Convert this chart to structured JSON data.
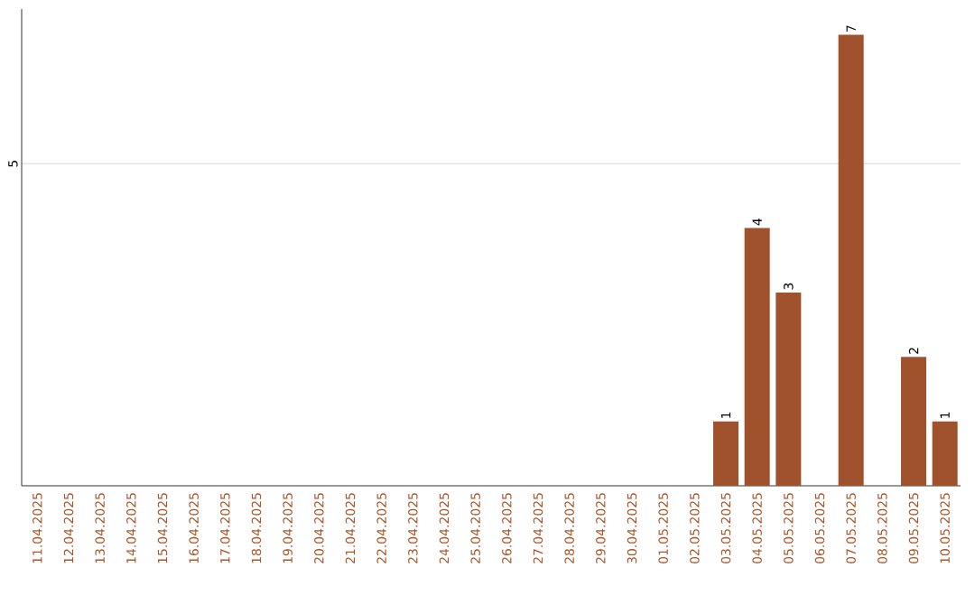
{
  "chart_data": {
    "type": "bar",
    "categories": [
      "11.04.2025",
      "12.04.2025",
      "13.04.2025",
      "14.04.2025",
      "15.04.2025",
      "16.04.2025",
      "17.04.2025",
      "18.04.2025",
      "19.04.2025",
      "20.04.2025",
      "21.04.2025",
      "22.04.2025",
      "23.04.2025",
      "24.04.2025",
      "25.04.2025",
      "26.04.2025",
      "27.04.2025",
      "28.04.2025",
      "29.04.2025",
      "30.04.2025",
      "01.05.2025",
      "02.05.2025",
      "03.05.2025",
      "04.05.2025",
      "05.05.2025",
      "06.05.2025",
      "07.05.2025",
      "08.05.2025",
      "09.05.2025",
      "10.05.2025"
    ],
    "values": [
      null,
      null,
      null,
      null,
      null,
      null,
      null,
      null,
      null,
      null,
      null,
      null,
      null,
      null,
      null,
      null,
      null,
      null,
      null,
      null,
      null,
      null,
      1,
      4,
      3,
      null,
      7,
      null,
      2,
      1
    ],
    "data_labels": true,
    "color": "#a0522d",
    "ylim": [
      0,
      7.4
    ],
    "yticks": [
      5
    ],
    "grid": "y"
  }
}
